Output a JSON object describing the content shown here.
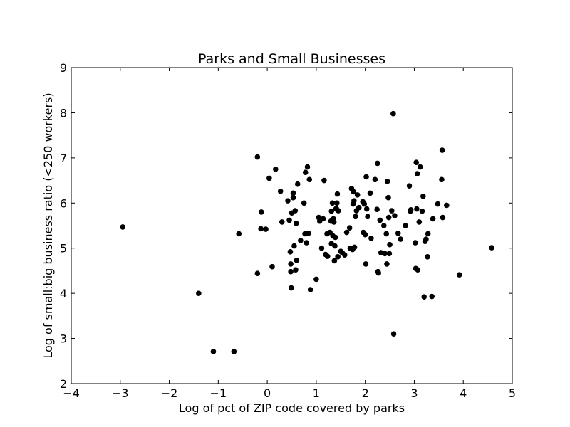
{
  "chart_data": {
    "type": "scatter",
    "title": "Parks and Small Businesses",
    "xlabel": "Log of pct of ZIP code covered by parks",
    "ylabel": "Log of small:big business ratio (<250 workers)",
    "xlim": [
      -4,
      5
    ],
    "ylim": [
      2,
      9
    ],
    "xticks": [
      -4,
      -3,
      -2,
      -1,
      0,
      1,
      2,
      3,
      4,
      5
    ],
    "xtick_labels": [
      "−4",
      "−3",
      "−2",
      "−1",
      "0",
      "1",
      "2",
      "3",
      "4",
      "5"
    ],
    "yticks": [
      2,
      3,
      4,
      5,
      6,
      7,
      8,
      9
    ],
    "ytick_labels": [
      "2",
      "3",
      "4",
      "5",
      "6",
      "7",
      "8",
      "9"
    ],
    "grid": false,
    "marker_color": "#000000",
    "points": [
      [
        -2.95,
        5.47
      ],
      [
        -1.4,
        4.0
      ],
      [
        -1.1,
        2.71
      ],
      [
        -0.68,
        2.71
      ],
      [
        -0.58,
        5.32
      ],
      [
        -0.2,
        7.02
      ],
      [
        -0.2,
        4.44
      ],
      [
        -0.13,
        5.43
      ],
      [
        -0.12,
        5.8
      ],
      [
        -0.03,
        5.42
      ],
      [
        0.04,
        6.55
      ],
      [
        0.1,
        4.59
      ],
      [
        0.17,
        6.75
      ],
      [
        0.27,
        6.26
      ],
      [
        0.3,
        5.58
      ],
      [
        0.42,
        6.05
      ],
      [
        0.45,
        5.62
      ],
      [
        0.47,
        4.92
      ],
      [
        0.48,
        4.65
      ],
      [
        0.48,
        4.48
      ],
      [
        0.49,
        4.12
      ],
      [
        0.5,
        5.78
      ],
      [
        0.53,
        6.22
      ],
      [
        0.53,
        6.12
      ],
      [
        0.55,
        5.05
      ],
      [
        0.57,
        5.83
      ],
      [
        0.58,
        4.52
      ],
      [
        0.59,
        5.55
      ],
      [
        0.6,
        4.73
      ],
      [
        0.62,
        6.42
      ],
      [
        0.68,
        5.17
      ],
      [
        0.75,
        6.0
      ],
      [
        0.77,
        5.32
      ],
      [
        0.78,
        6.68
      ],
      [
        0.8,
        5.12
      ],
      [
        0.82,
        6.8
      ],
      [
        0.84,
        5.33
      ],
      [
        0.86,
        6.52
      ],
      [
        0.88,
        4.08
      ],
      [
        1.0,
        4.31
      ],
      [
        1.05,
        5.68
      ],
      [
        1.07,
        5.6
      ],
      [
        1.11,
        5.0
      ],
      [
        1.14,
        5.65
      ],
      [
        1.16,
        6.5
      ],
      [
        1.19,
        4.86
      ],
      [
        1.22,
        5.32
      ],
      [
        1.23,
        4.82
      ],
      [
        1.28,
        5.35
      ],
      [
        1.3,
        5.6
      ],
      [
        1.31,
        5.1
      ],
      [
        1.31,
        5.82
      ],
      [
        1.33,
        6.0
      ],
      [
        1.34,
        5.27
      ],
      [
        1.35,
        5.65
      ],
      [
        1.36,
        5.58
      ],
      [
        1.37,
        4.72
      ],
      [
        1.38,
        5.05
      ],
      [
        1.39,
        5.24
      ],
      [
        1.4,
        5.87
      ],
      [
        1.41,
        5.88
      ],
      [
        1.42,
        6.0
      ],
      [
        1.43,
        6.2
      ],
      [
        1.44,
        4.81
      ],
      [
        1.45,
        5.83
      ],
      [
        1.5,
        4.93
      ],
      [
        1.53,
        4.9
      ],
      [
        1.58,
        4.85
      ],
      [
        1.62,
        5.35
      ],
      [
        1.68,
        5.45
      ],
      [
        1.69,
        5.0
      ],
      [
        1.72,
        6.32
      ],
      [
        1.74,
        4.97
      ],
      [
        1.75,
        5.98
      ],
      [
        1.76,
        6.25
      ],
      [
        1.77,
        6.05
      ],
      [
        1.78,
        5.02
      ],
      [
        1.8,
        5.7
      ],
      [
        1.82,
        5.83
      ],
      [
        1.84,
        6.18
      ],
      [
        1.87,
        5.9
      ],
      [
        1.95,
        6.03
      ],
      [
        1.96,
        5.35
      ],
      [
        1.98,
        5.98
      ],
      [
        2.0,
        5.3
      ],
      [
        2.01,
        4.65
      ],
      [
        2.02,
        6.58
      ],
      [
        2.03,
        5.87
      ],
      [
        2.05,
        5.7
      ],
      [
        2.1,
        6.22
      ],
      [
        2.12,
        5.22
      ],
      [
        2.2,
        6.52
      ],
      [
        2.24,
        5.86
      ],
      [
        2.25,
        6.88
      ],
      [
        2.26,
        4.48
      ],
      [
        2.27,
        4.45
      ],
      [
        2.3,
        5.62
      ],
      [
        2.32,
        4.9
      ],
      [
        2.38,
        5.5
      ],
      [
        2.4,
        4.88
      ],
      [
        2.43,
        5.32
      ],
      [
        2.44,
        4.65
      ],
      [
        2.45,
        6.48
      ],
      [
        2.47,
        6.12
      ],
      [
        2.48,
        5.68
      ],
      [
        2.49,
        4.88
      ],
      [
        2.5,
        5.08
      ],
      [
        2.54,
        5.83
      ],
      [
        2.57,
        7.98
      ],
      [
        2.58,
        3.1
      ],
      [
        2.6,
        5.72
      ],
      [
        2.67,
        5.33
      ],
      [
        2.72,
        5.2
      ],
      [
        2.82,
        5.5
      ],
      [
        2.9,
        6.38
      ],
      [
        2.92,
        5.82
      ],
      [
        2.93,
        5.85
      ],
      [
        3.02,
        5.12
      ],
      [
        3.03,
        4.55
      ],
      [
        3.04,
        6.9
      ],
      [
        3.05,
        5.87
      ],
      [
        3.06,
        6.65
      ],
      [
        3.07,
        4.52
      ],
      [
        3.1,
        5.58
      ],
      [
        3.12,
        6.8
      ],
      [
        3.16,
        5.82
      ],
      [
        3.18,
        6.15
      ],
      [
        3.2,
        3.92
      ],
      [
        3.22,
        5.15
      ],
      [
        3.24,
        5.2
      ],
      [
        3.27,
        4.81
      ],
      [
        3.28,
        5.32
      ],
      [
        3.36,
        3.93
      ],
      [
        3.38,
        5.65
      ],
      [
        3.48,
        5.98
      ],
      [
        3.56,
        6.52
      ],
      [
        3.57,
        7.17
      ],
      [
        3.58,
        5.68
      ],
      [
        3.66,
        5.95
      ],
      [
        3.92,
        4.41
      ],
      [
        4.58,
        5.01
      ]
    ]
  }
}
